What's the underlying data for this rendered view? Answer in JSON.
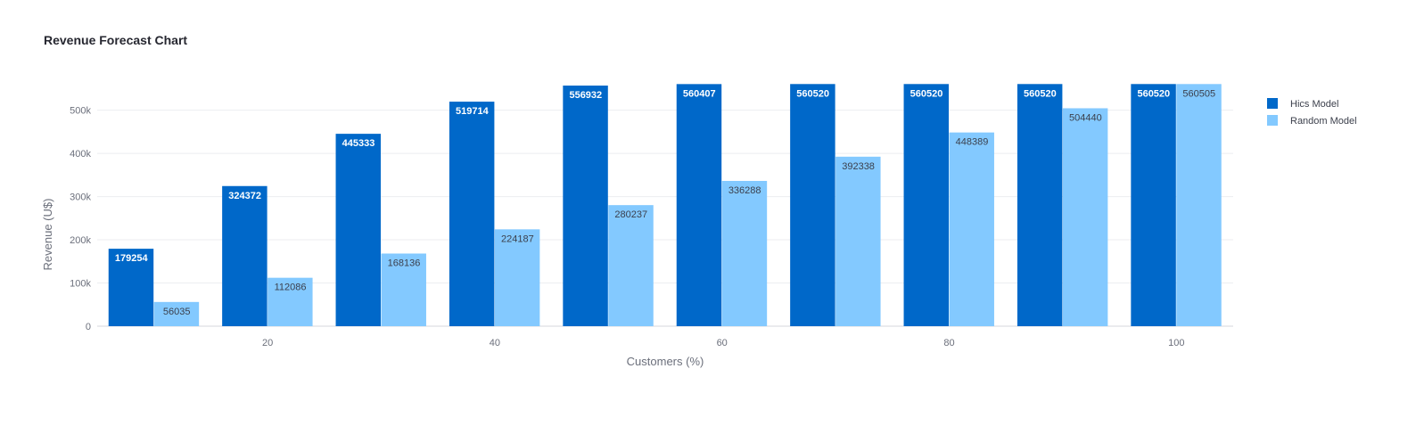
{
  "chart_data": {
    "type": "bar",
    "title": "Revenue Forecast Chart",
    "xlabel": "Customers (%)",
    "ylabel": "Revenue (U$)",
    "x": [
      10,
      20,
      30,
      40,
      50,
      60,
      70,
      80,
      90,
      100
    ],
    "xticks": [
      20,
      40,
      60,
      80,
      100
    ],
    "xtick_labels": [
      "20",
      "40",
      "60",
      "80",
      "100"
    ],
    "yticks": [
      0,
      100000,
      200000,
      300000,
      400000,
      500000
    ],
    "ytick_labels": [
      "0",
      "100k",
      "200k",
      "300k",
      "400k",
      "500k"
    ],
    "ylim": [
      0,
      590000
    ],
    "xlim": [
      5,
      105
    ],
    "grid": true,
    "legend_position": "top-right",
    "series": [
      {
        "name": "Hics Model",
        "color": "#0068c9",
        "label_color": "#ffffff",
        "values": [
          179254,
          324372,
          445333,
          519714,
          556932,
          560407,
          560520,
          560520,
          560520,
          560520
        ]
      },
      {
        "name": "Random Model",
        "color": "#83c9ff",
        "label_color": "#3b3f4b",
        "values": [
          56035,
          112086,
          168136,
          224187,
          280237,
          336288,
          392338,
          448389,
          504440,
          560505
        ]
      }
    ]
  }
}
